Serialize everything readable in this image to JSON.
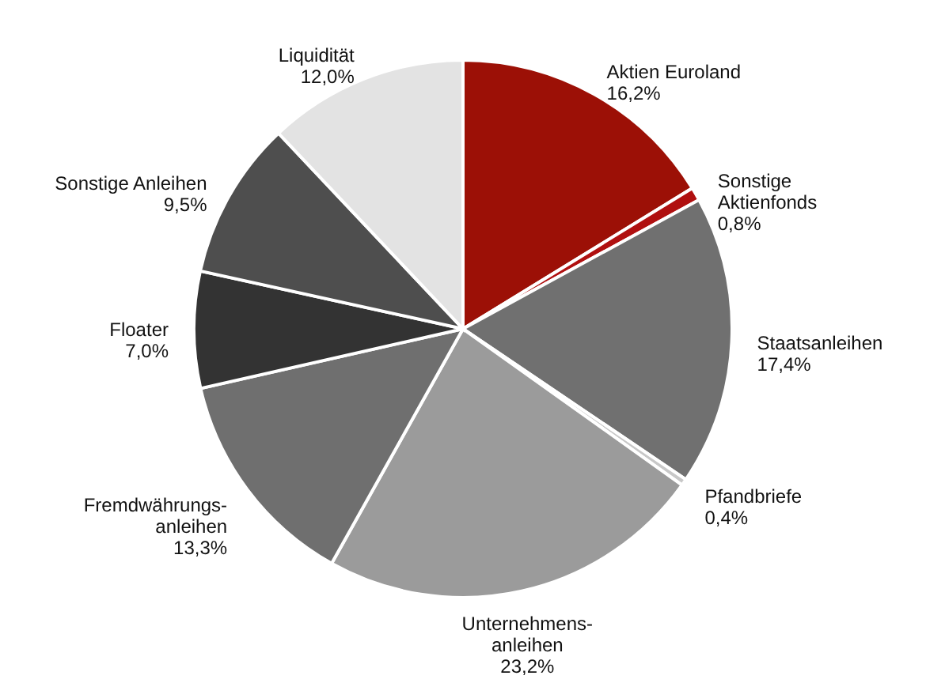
{
  "chart_data": {
    "type": "pie",
    "categories": [
      "Aktien Euroland",
      "Sonstige\nAktienfonds",
      "Staatsanleihen",
      "Pfandbriefe",
      "Unternehmens-\nanleihen",
      "Fremdwährungs-\nanleihen",
      "Floater",
      "Sonstige Anleihen",
      "Liquidität"
    ],
    "values": [
      16.2,
      0.8,
      17.4,
      0.4,
      23.2,
      13.3,
      7.0,
      9.5,
      12.0
    ],
    "value_labels": [
      "16,2%",
      "0,8%",
      "17,4%",
      "0,4%",
      "23,2%",
      "13,3%",
      "7,0%",
      "9,5%",
      "12,0%"
    ],
    "colors": [
      "#9c1006",
      "#b01010",
      "#707070",
      "#c8c8c8",
      "#9b9b9b",
      "#6f6f6f",
      "#333333",
      "#4e4e4e",
      "#e3e3e3"
    ]
  }
}
